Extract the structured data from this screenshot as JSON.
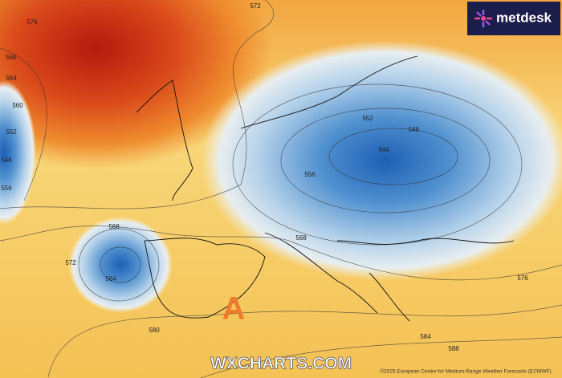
{
  "map": {
    "brand": "metdesk",
    "watermark": "WXCHARTS.COM",
    "credit": "©2025 European Centre for Medium-Range Weather Forecasts (ECMWF)",
    "high_marker": "A",
    "contour_labels": [
      "572",
      "576",
      "568",
      "564",
      "560",
      "552",
      "548",
      "556",
      "552",
      "548",
      "544",
      "556",
      "568",
      "564",
      "572",
      "568",
      "580",
      "576",
      "584",
      "588"
    ]
  }
}
